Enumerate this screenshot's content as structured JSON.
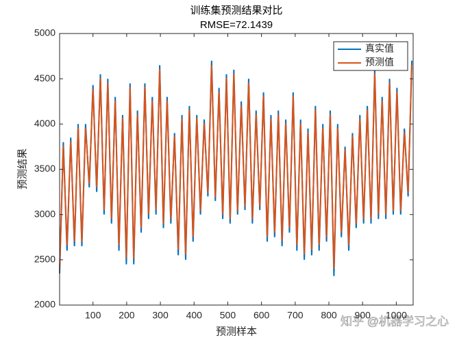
{
  "chart_data": {
    "type": "line",
    "title": "训练集预测结果对比",
    "subtitle": "RMSE=72.1439",
    "x_label": "预测样本",
    "y_label": "预测结果",
    "watermark": "知乎 @机器学习之心",
    "x": [
      1,
      12,
      23,
      34,
      45,
      56,
      67,
      78,
      89,
      100,
      111,
      122,
      133,
      144,
      155,
      166,
      177,
      188,
      199,
      210,
      221,
      232,
      243,
      254,
      265,
      276,
      287,
      298,
      309,
      320,
      331,
      342,
      353,
      364,
      375,
      386,
      397,
      408,
      419,
      430,
      441,
      452,
      463,
      474,
      485,
      496,
      507,
      518,
      529,
      540,
      551,
      562,
      573,
      584,
      595,
      606,
      617,
      628,
      639,
      650,
      661,
      672,
      683,
      694,
      705,
      716,
      727,
      738,
      749,
      760,
      771,
      782,
      793,
      804,
      815,
      826,
      837,
      848,
      859,
      870,
      881,
      892,
      903,
      914,
      925,
      936,
      947,
      958,
      969,
      980,
      991,
      1002,
      1013,
      1024,
      1035,
      1046
    ],
    "series": [
      {
        "name": "真实值",
        "color": "#0072bd",
        "values": [
          2350,
          3800,
          2600,
          3850,
          2650,
          4000,
          2650,
          4000,
          3300,
          4430,
          3250,
          4550,
          3000,
          4500,
          2900,
          4300,
          2600,
          4100,
          2450,
          4450,
          2450,
          4150,
          2800,
          4450,
          2950,
          4300,
          3000,
          4650,
          2850,
          4300,
          2900,
          3900,
          2550,
          4100,
          2500,
          4200,
          2700,
          4100,
          3000,
          4050,
          3200,
          4700,
          3150,
          4400,
          2950,
          4550,
          2900,
          4600,
          3000,
          4250,
          3050,
          4500,
          2900,
          4150,
          3050,
          4350,
          2700,
          4100,
          2750,
          4150,
          2650,
          4050,
          2800,
          4350,
          2600,
          4050,
          2500,
          3950,
          2550,
          4200,
          2600,
          4000,
          2700,
          4150,
          2320,
          4000,
          2750,
          3750,
          2600,
          3900,
          2850,
          4100,
          2900,
          4200,
          2900,
          4600,
          2950,
          4300,
          2950,
          4500,
          3000,
          4400,
          3000,
          3950,
          3200,
          4700
        ]
      },
      {
        "name": "预测值",
        "color": "#d95319",
        "values": [
          2400,
          3760,
          2660,
          3810,
          2700,
          3960,
          2700,
          3960,
          3340,
          4390,
          3300,
          4510,
          3050,
          4460,
          2950,
          4260,
          2660,
          4070,
          2520,
          4410,
          2510,
          4110,
          2850,
          4410,
          3000,
          4260,
          3050,
          4610,
          2900,
          4260,
          2950,
          3870,
          2610,
          4060,
          2560,
          4160,
          2750,
          4070,
          3040,
          4010,
          3240,
          4650,
          3190,
          4360,
          3000,
          4510,
          2950,
          4560,
          3040,
          4210,
          3090,
          4460,
          2950,
          4110,
          3090,
          4310,
          2750,
          4060,
          2800,
          4110,
          2710,
          4010,
          2850,
          4310,
          2660,
          4010,
          2560,
          3910,
          2610,
          4160,
          2660,
          3960,
          2750,
          4110,
          2400,
          3960,
          2800,
          3720,
          2660,
          3870,
          2900,
          4060,
          2950,
          4160,
          2950,
          4560,
          3000,
          4260,
          3000,
          4460,
          3040,
          4360,
          3040,
          3910,
          3240,
          4650
        ]
      }
    ],
    "xlim": [
      1,
      1050
    ],
    "xticks": [
      100,
      200,
      300,
      400,
      500,
      600,
      700,
      800,
      900,
      1000
    ],
    "ylim": [
      2000,
      5000
    ],
    "yticks": [
      2000,
      2500,
      3000,
      3500,
      4000,
      4500,
      5000
    ],
    "legend": "upper right"
  }
}
